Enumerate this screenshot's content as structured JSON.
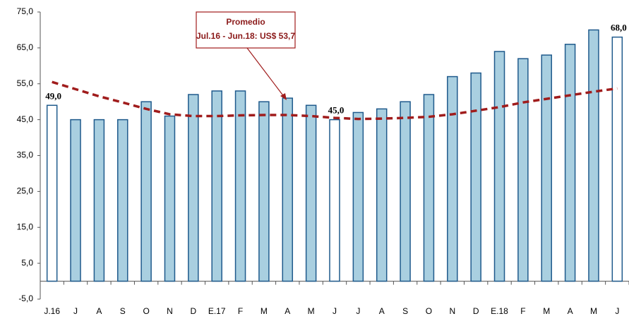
{
  "chart_data": {
    "type": "bar",
    "categories": [
      "J.16",
      "J",
      "A",
      "S",
      "O",
      "N",
      "D",
      "E.17",
      "F",
      "M",
      "A",
      "M",
      "J",
      "J",
      "A",
      "S",
      "O",
      "N",
      "D",
      "E.18",
      "F",
      "M",
      "A",
      "M",
      "J"
    ],
    "series": [
      {
        "type": "bar",
        "color": "#a9cfe0",
        "stroke": "#1f5a8c",
        "colors": [
          "#ffffff",
          "#a9cfe0",
          "#a9cfe0",
          "#a9cfe0",
          "#a9cfe0",
          "#a9cfe0",
          "#a9cfe0",
          "#a9cfe0",
          "#a9cfe0",
          "#a9cfe0",
          "#a9cfe0",
          "#a9cfe0",
          "#ffffff",
          "#a9cfe0",
          "#a9cfe0",
          "#a9cfe0",
          "#a9cfe0",
          "#a9cfe0",
          "#a9cfe0",
          "#a9cfe0",
          "#a9cfe0",
          "#a9cfe0",
          "#a9cfe0",
          "#a9cfe0",
          "#ffffff"
        ],
        "values": [
          49,
          45,
          45,
          45,
          50,
          46,
          52,
          53,
          53,
          50,
          51,
          49,
          45,
          47,
          48,
          50,
          52,
          57,
          58,
          64,
          62,
          63,
          66,
          70,
          68
        ],
        "value_labels": [
          "49,0",
          null,
          null,
          null,
          null,
          null,
          null,
          null,
          null,
          null,
          null,
          null,
          "45,0",
          null,
          null,
          null,
          null,
          null,
          null,
          null,
          null,
          null,
          null,
          null,
          "68,0"
        ]
      },
      {
        "type": "line",
        "color": "#a01c1c",
        "dashed": true,
        "values": [
          55.5,
          53.5,
          51.5,
          49.8,
          48,
          46.5,
          46,
          46,
          46.2,
          46.3,
          46.3,
          46,
          45.5,
          45.2,
          45.3,
          45.5,
          45.8,
          46.5,
          47.5,
          48.5,
          49.8,
          50.8,
          51.8,
          52.8,
          53.7
        ]
      }
    ],
    "annotation": {
      "title": "Promedio",
      "text": "Jul.16 - Jun.18: US$ 53,7"
    },
    "ylim": [
      -5,
      75
    ],
    "yticks": [
      {
        "value": -5,
        "label": "-5,0"
      },
      {
        "value": 5,
        "label": "5,0"
      },
      {
        "value": 15,
        "label": "15,0"
      },
      {
        "value": 25,
        "label": "25,0"
      },
      {
        "value": 35,
        "label": "35,0"
      },
      {
        "value": 45,
        "label": "45,0"
      },
      {
        "value": 55,
        "label": "55,0"
      },
      {
        "value": 65,
        "label": "65,0"
      },
      {
        "value": 75,
        "label": "75,0"
      }
    ],
    "grid": false
  }
}
